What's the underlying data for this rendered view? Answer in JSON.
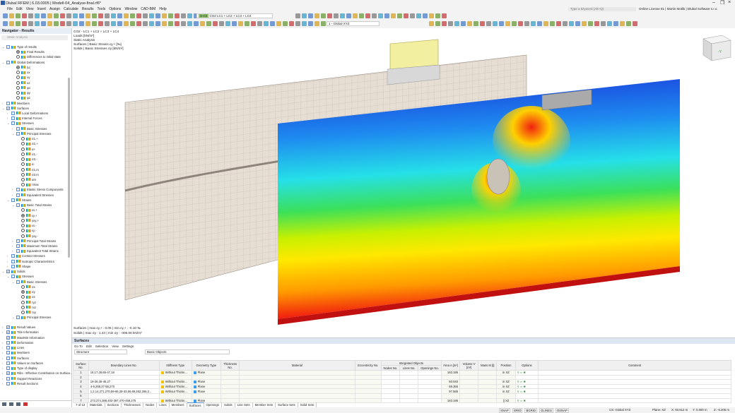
{
  "app": {
    "title": "Dlubal RFEM | 6.03.0005 | Modell-04_Analyse-final.rf6*",
    "search_placeholder": "Type a keyword (Alt+Q)",
    "license": "Online License 81 | Martin Motlik | Dlubal Software s.r.o."
  },
  "menu": [
    "File",
    "Edit",
    "View",
    "Insert",
    "Assign",
    "Calculate",
    "Results",
    "Tools",
    "Options",
    "Window",
    "CAD-BIM",
    "Help"
  ],
  "toolbar": {
    "load_combo_tag": "S-Ch",
    "load_combo": "CO2   LC1 + LC2 + LC3 + LC4",
    "view_combo": "1 - Global XYZ"
  },
  "navigator": {
    "title": "Navigator - Results",
    "analysis": "Static Analysis",
    "items": [
      {
        "d": 0,
        "k": "cb",
        "l": "Type of results",
        "e": "v"
      },
      {
        "d": 2,
        "k": "rb",
        "on": true,
        "l": "Final Results"
      },
      {
        "d": 2,
        "k": "rb",
        "l": "Differences to initial state"
      },
      {
        "d": 0,
        "k": "cb",
        "l": "Global Deformations",
        "e": "v"
      },
      {
        "d": 2,
        "k": "rb",
        "on": true,
        "l": "|u|"
      },
      {
        "d": 2,
        "k": "rb",
        "l": "ux"
      },
      {
        "d": 2,
        "k": "rb",
        "l": "uy"
      },
      {
        "d": 2,
        "k": "rb",
        "l": "uz"
      },
      {
        "d": 2,
        "k": "rb",
        "l": "φx"
      },
      {
        "d": 2,
        "k": "rb",
        "l": "φy"
      },
      {
        "d": 2,
        "k": "rb",
        "l": "φz"
      },
      {
        "d": 0,
        "k": "cb",
        "l": "Members",
        "e": ">"
      },
      {
        "d": 0,
        "k": "cb",
        "on": true,
        "l": "Surfaces",
        "e": "v"
      },
      {
        "d": 1,
        "k": "cb",
        "l": "Local Deformations",
        "e": ">"
      },
      {
        "d": 1,
        "k": "cb",
        "l": "Internal Forces",
        "e": ">"
      },
      {
        "d": 1,
        "k": "cb",
        "l": "Stresses",
        "e": "v"
      },
      {
        "d": 2,
        "k": "cb",
        "l": "Basic Stresses",
        "e": ">"
      },
      {
        "d": 2,
        "k": "cb",
        "l": "Principal Stresses",
        "e": "v"
      },
      {
        "d": 3,
        "k": "rb",
        "l": "σ1,+"
      },
      {
        "d": 3,
        "k": "rb",
        "l": "σ2,+"
      },
      {
        "d": 3,
        "k": "rb",
        "l": "α+"
      },
      {
        "d": 3,
        "k": "rb",
        "l": "σ1,-"
      },
      {
        "d": 3,
        "k": "rb",
        "l": "σ2,-"
      },
      {
        "d": 3,
        "k": "rb",
        "l": "α-"
      },
      {
        "d": 3,
        "k": "rb",
        "l": "σ1,m"
      },
      {
        "d": 3,
        "k": "rb",
        "l": "σ2,m"
      },
      {
        "d": 3,
        "k": "rb",
        "l": "αm"
      },
      {
        "d": 3,
        "k": "rb",
        "l": "τmax"
      },
      {
        "d": 2,
        "k": "cb",
        "l": "Elastic Stress Components",
        "e": ">"
      },
      {
        "d": 2,
        "k": "cb",
        "l": "Equivalent Stresses",
        "e": ">"
      },
      {
        "d": 1,
        "k": "cb",
        "l": "Strains",
        "e": "v"
      },
      {
        "d": 2,
        "k": "cb",
        "l": "Basic Total Strains",
        "e": "v"
      },
      {
        "d": 3,
        "k": "rb",
        "l": "εx,+"
      },
      {
        "d": 3,
        "k": "rb",
        "on": true,
        "l": "εy,+"
      },
      {
        "d": 3,
        "k": "rb",
        "l": "γxy,+"
      },
      {
        "d": 3,
        "k": "rb",
        "l": "εx,-"
      },
      {
        "d": 3,
        "k": "rb",
        "l": "εy,-"
      },
      {
        "d": 3,
        "k": "rb",
        "l": "γxy,-"
      },
      {
        "d": 2,
        "k": "cb",
        "l": "Principal Total Strains",
        "e": ">"
      },
      {
        "d": 2,
        "k": "cb",
        "l": "Maximum Total Strains",
        "e": ">"
      },
      {
        "d": 2,
        "k": "cb",
        "l": "Equivalent Total Strains",
        "e": ">"
      },
      {
        "d": 1,
        "k": "cb",
        "l": "Contact Stresses",
        "e": ">"
      },
      {
        "d": 1,
        "k": "cb",
        "l": "Isotropic Characteristics",
        "e": ">"
      },
      {
        "d": 1,
        "k": "cb",
        "l": "Shape",
        "e": ">"
      },
      {
        "d": 0,
        "k": "cb",
        "on": true,
        "l": "Solids",
        "e": "v"
      },
      {
        "d": 1,
        "k": "cb",
        "l": "Stresses",
        "e": "v"
      },
      {
        "d": 2,
        "k": "cb",
        "l": "Basic Stresses",
        "e": "v"
      },
      {
        "d": 3,
        "k": "rb",
        "l": "σx"
      },
      {
        "d": 3,
        "k": "rb",
        "on": true,
        "l": "σy"
      },
      {
        "d": 3,
        "k": "rb",
        "l": "σz"
      },
      {
        "d": 3,
        "k": "rb",
        "l": "τyz"
      },
      {
        "d": 3,
        "k": "rb",
        "l": "τxz"
      },
      {
        "d": 3,
        "k": "rb",
        "l": "τxy"
      },
      {
        "d": 2,
        "k": "cb",
        "l": "Principal Stresses",
        "e": "v"
      }
    ],
    "display_items": [
      {
        "k": "cb",
        "on": true,
        "l": "Result Values",
        "e": ">"
      },
      {
        "k": "cb",
        "on": true,
        "l": "Title Information",
        "e": ">"
      },
      {
        "k": "cb",
        "on": true,
        "l": "Max/Min Information"
      },
      {
        "k": "cb",
        "l": "Deformation",
        "e": ">"
      },
      {
        "k": "cb",
        "l": "Lines",
        "e": ">"
      },
      {
        "k": "cb",
        "l": "Members",
        "e": ">"
      },
      {
        "k": "cb",
        "l": "Surfaces",
        "e": ">"
      },
      {
        "k": "cb",
        "l": "Values on Surfaces",
        "e": ">"
      },
      {
        "k": "cb",
        "l": "Type of display",
        "e": ">"
      },
      {
        "k": "cb",
        "on": true,
        "l": "Ribs - Effective Contribution on Surface...",
        "e": ">"
      },
      {
        "k": "cb",
        "l": "Support Reactions",
        "e": ">"
      },
      {
        "k": "cb",
        "l": "Result Sections",
        "e": ">"
      }
    ]
  },
  "viewport": {
    "info": [
      "CO2 - LC1 + LC2 + LC3 + LC4",
      "Loads [kN/m²]",
      "Static Analysis",
      "Surfaces | Basic Strains εy,+ [‰]",
      "Solids | Basic Stresses σy [kN/m²]"
    ],
    "minmax": [
      "Surfaces | max εy,+ : 0.06 | min εy,+ : -0.10 ‰",
      "Solids | max σy : 1.43 | min σy : -306.06 kN/m²"
    ],
    "contour_colors": [
      "#1a2fd8",
      "#1e8cf0",
      "#25e0e8",
      "#3be05a",
      "#c8f000",
      "#ffe800",
      "#ff9a00",
      "#f01010"
    ],
    "view_cube_label": "-Y"
  },
  "table": {
    "title": "Surfaces",
    "menu": [
      "Go To",
      "Edit",
      "Selection",
      "View",
      "Settings"
    ],
    "filter1": "Structure",
    "filter2": "Basic Objects",
    "group_header": "Integrated Objects",
    "columns": [
      "Surface No.",
      "Boundary Lines No.",
      "Stiffness Type",
      "Geometry Type",
      "Thickness No.",
      "Material",
      "Eccentricity No.",
      "Nodes No.",
      "Lines No.",
      "Openings No.",
      "Area A [m²]",
      "Volume V [m³]",
      "Mass M [t]",
      "Position",
      "Options",
      "Comment"
    ],
    "rows": [
      [
        "1",
        "16,17,28,65-47,18",
        "Without Thickn...",
        "Plane",
        "",
        "",
        "",
        "",
        "",
        "",
        "183.195",
        "",
        "",
        "in XZ",
        "",
        ""
      ],
      [
        "2",
        "",
        "",
        "",
        "",
        "",
        "",
        "",
        "",
        "",
        "",
        "",
        "",
        "",
        "",
        ""
      ],
      [
        "3",
        "19-26,36-45,27",
        "Without Thickn...",
        "Plane",
        "",
        "",
        "",
        "",
        "",
        "",
        "50.040",
        "",
        "",
        "in XZ",
        "",
        ""
      ],
      [
        "4",
        "4-9,268,37-58,270",
        "Without Thickn...",
        "Plane",
        "",
        "",
        "",
        "",
        "",
        "",
        "69.355",
        "",
        "",
        "in XZ",
        "",
        ""
      ],
      [
        "5",
        "1,2,14,271,270,59-65,28-33,66,69,262,265,2...",
        "Without Thickn...",
        "Plane",
        "",
        "",
        "",
        "",
        "",
        "",
        "97.565",
        "",
        "",
        "in XZ",
        "",
        ""
      ],
      [
        "6",
        "",
        "",
        "",
        "",
        "",
        "",
        "",
        "",
        "",
        "",
        "",
        "",
        "",
        "",
        ""
      ],
      [
        "7",
        "273,274,388,403-397,470-459,275",
        "Without Thickn...",
        "Plane",
        "",
        "",
        "",
        "",
        "",
        "",
        "183.195",
        "",
        "",
        "|| XZ",
        "",
        ""
      ]
    ],
    "stiffness_color": "#f5c000",
    "geometry_color": "#3a9ef0",
    "pager": "7 of 13",
    "sheets": [
      "Materials",
      "Sections",
      "Thicknesses",
      "Nodes",
      "Lines",
      "Members",
      "Surfaces",
      "Openings",
      "Solids",
      "Line Sets",
      "Member Sets",
      "Surface Sets",
      "Solid Sets"
    ],
    "active_sheet": "Surfaces"
  },
  "status": {
    "toggles": [
      "SNAP",
      "GRID",
      "BGRID",
      "GLINES",
      "OSNAP"
    ],
    "cs": "CS: Global XYZ",
    "plane": "Plane: XZ",
    "x": "X: 93.612 m",
    "y": "Y: 0.000 m",
    "z": "Z: -6.206 m"
  }
}
